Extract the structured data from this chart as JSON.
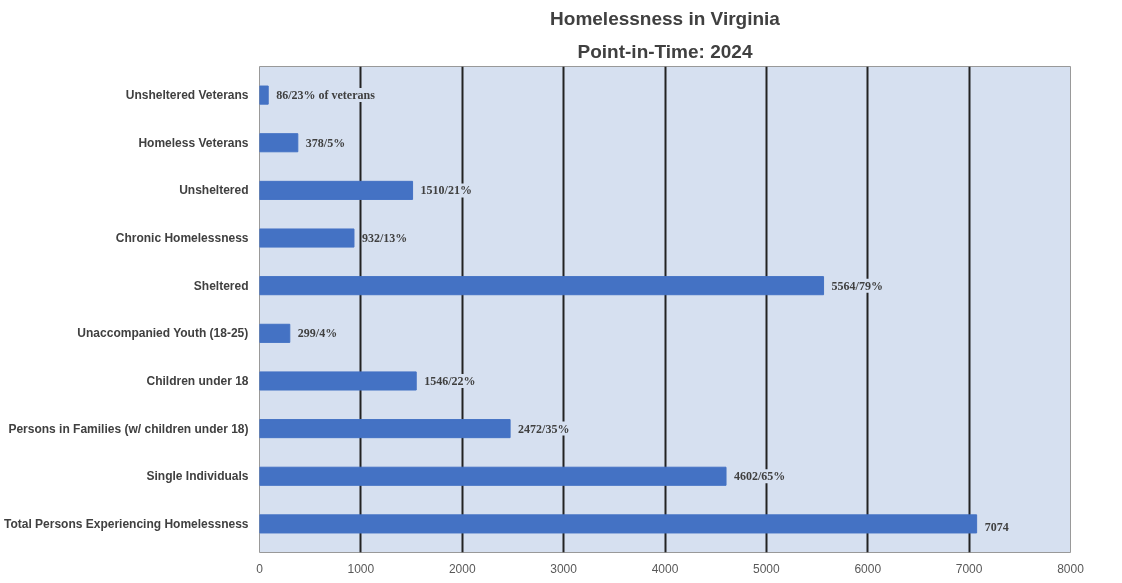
{
  "chart_data": {
    "type": "bar",
    "orientation": "horizontal",
    "title": "Homelessness in Virginia",
    "subtitle": "Point-in-Time: 2024",
    "categories": [
      "Unsheltered Veterans",
      "Homeless Veterans",
      "Unsheltered",
      "Chronic Homelessness",
      "Sheltered",
      "Unaccompanied Youth (18-25)",
      "Children under 18",
      "Persons in Families (w/ children under 18)",
      "Single Individuals",
      "Total Persons Experiencing Homelessness"
    ],
    "values": [
      86,
      378,
      1510,
      932,
      5564,
      299,
      1546,
      2472,
      4602,
      7074
    ],
    "value_labels": [
      "86/23% of veterans",
      "378/5%",
      "1510/21%",
      "932/13%",
      "5564/79%",
      "299/4%",
      "1546/22%",
      "2472/35%",
      "4602/65%",
      "7074"
    ],
    "color": "#4472c4",
    "xlim": [
      0,
      8000
    ],
    "xticks": [
      0,
      1000,
      2000,
      3000,
      4000,
      5000,
      6000,
      7000,
      8000
    ],
    "grid": "x",
    "legend": false
  }
}
